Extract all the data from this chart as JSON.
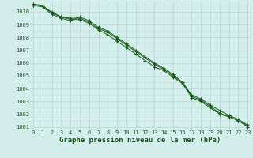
{
  "title": "Graphe pression niveau de la mer (hPa)",
  "xlabel_hours": [
    0,
    1,
    2,
    3,
    4,
    5,
    6,
    7,
    8,
    9,
    10,
    11,
    12,
    13,
    14,
    15,
    16,
    17,
    18,
    19,
    20,
    21,
    22,
    23
  ],
  "series": [
    [
      1010.5,
      1010.4,
      1010.0,
      1009.6,
      1009.4,
      1009.4,
      1009.1,
      1008.6,
      1008.2,
      1007.7,
      1007.2,
      1006.7,
      1006.2,
      1005.7,
      1005.4,
      1004.9,
      1004.4,
      1003.3,
      1003.0,
      1002.5,
      1002.0,
      1001.8,
      1001.5,
      1001.0
    ],
    [
      1010.5,
      1010.4,
      1009.8,
      1009.5,
      1009.3,
      1009.6,
      1009.3,
      1008.8,
      1008.5,
      1008.0,
      1007.5,
      1007.0,
      1006.5,
      1006.0,
      1005.6,
      1005.1,
      1004.5,
      1003.4,
      1003.1,
      1002.6,
      1002.1,
      1001.8,
      1001.5,
      1001.1
    ],
    [
      1010.6,
      1010.5,
      1009.9,
      1009.6,
      1009.5,
      1009.5,
      1009.2,
      1008.7,
      1008.4,
      1007.9,
      1007.4,
      1006.9,
      1006.4,
      1005.9,
      1005.5,
      1005.0,
      1004.5,
      1003.5,
      1003.2,
      1002.7,
      1002.3,
      1001.9,
      1001.6,
      1001.15
    ]
  ],
  "line_color": "#1a5c1a",
  "marker_color": "#1a5c1a",
  "bg_color": "#d4eeec",
  "grid_color": "#b8d8d6",
  "text_color": "#1a5c1a",
  "ylim_min": 1000.8,
  "ylim_max": 1010.8,
  "yticks": [
    1001,
    1002,
    1003,
    1004,
    1005,
    1006,
    1007,
    1008,
    1009,
    1010
  ],
  "title_fontsize": 6.5,
  "tick_fontsize": 5.0
}
